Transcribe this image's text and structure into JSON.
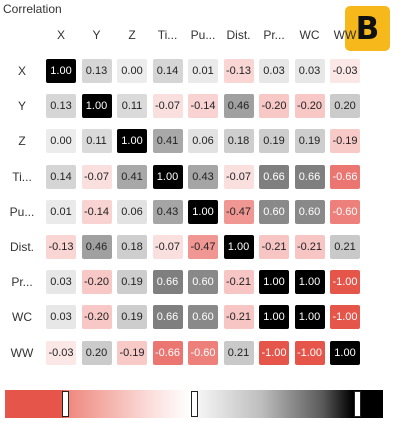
{
  "panel": {
    "title": "Correlation",
    "badge": "B"
  },
  "matrix": {
    "columns": [
      "X",
      "Y",
      "Z",
      "Ti...",
      "Pu...",
      "Dist.",
      "Pr...",
      "WC",
      "WW"
    ],
    "rows": [
      "X",
      "Y",
      "Z",
      "Ti...",
      "Pu...",
      "Dist.",
      "Pr...",
      "WC",
      "WW"
    ],
    "values": [
      [
        "1.00",
        "0.13",
        "0.00",
        "0.14",
        "0.01",
        "-0.13",
        "0.03",
        "0.03",
        "-0.03"
      ],
      [
        "0.13",
        "1.00",
        "0.11",
        "-0.07",
        "-0.14",
        "0.46",
        "-0.20",
        "-0.20",
        "0.20"
      ],
      [
        "0.00",
        "0.11",
        "1.00",
        "0.41",
        "0.06",
        "0.18",
        "0.19",
        "0.19",
        "-0.19"
      ],
      [
        "0.14",
        "-0.07",
        "0.41",
        "1.00",
        "0.43",
        "-0.07",
        "0.66",
        "0.66",
        "-0.66"
      ],
      [
        "0.01",
        "-0.14",
        "0.06",
        "0.43",
        "1.00",
        "-0.47",
        "0.60",
        "0.60",
        "-0.60"
      ],
      [
        "-0.13",
        "0.46",
        "0.18",
        "-0.07",
        "-0.47",
        "1.00",
        "-0.21",
        "-0.21",
        "0.21"
      ],
      [
        "0.03",
        "-0.20",
        "0.19",
        "0.66",
        "0.60",
        "-0.21",
        "1.00",
        "1.00",
        "-1.00"
      ],
      [
        "0.03",
        "-0.20",
        "0.19",
        "0.66",
        "0.60",
        "-0.21",
        "1.00",
        "1.00",
        "-1.00"
      ],
      [
        "-0.03",
        "0.20",
        "-0.19",
        "-0.66",
        "-0.60",
        "0.21",
        "-1.00",
        "-1.00",
        "1.00"
      ]
    ]
  },
  "legend": {
    "handles": [
      0.16,
      0.5,
      0.93
    ]
  },
  "colors": {
    "positive_max": "#000000",
    "negative_max": "#e5554a",
    "badge": "#f6b81b"
  }
}
